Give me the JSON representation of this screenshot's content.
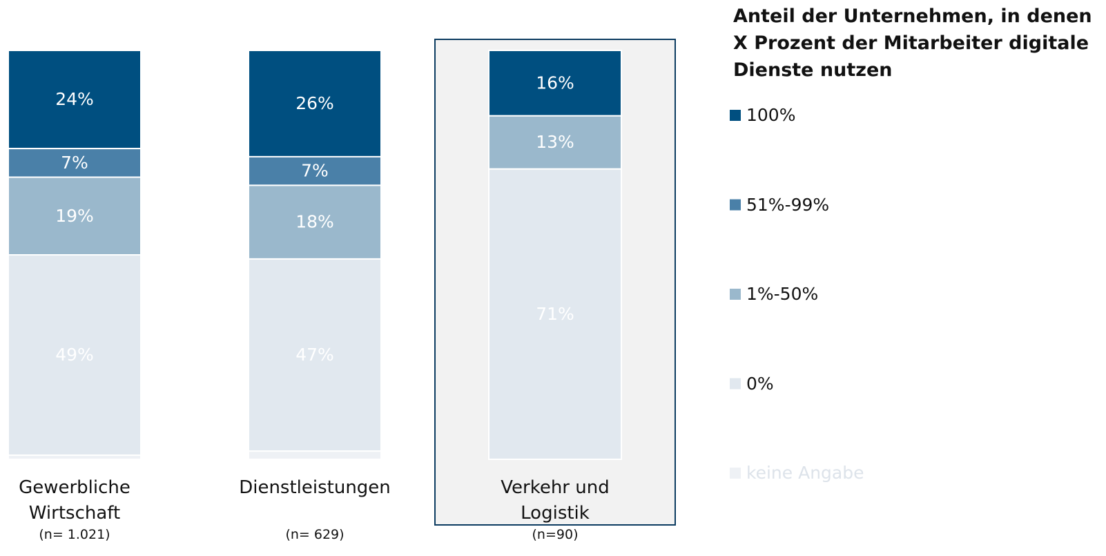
{
  "chart_data": {
    "type": "stacked_bar",
    "legend_title": "Anteil der Unternehmen, in denen X Prozent der Mitarbeiter digitale Dienste nutzen",
    "categories": [
      "Gewerbliche Wirtschaft",
      "Dienstleistungen",
      "Verkehr und Logistik"
    ],
    "sample_sizes": [
      "(n= 1.021)",
      "(n= 629)",
      "(n=90)"
    ],
    "highlight": 2,
    "ylim": [
      0,
      100
    ],
    "series": [
      {
        "name": "100%",
        "color": "#004f80",
        "label_color": "#ffffff",
        "values": [
          24,
          26,
          16
        ],
        "value_labels": [
          "24%",
          "26%",
          "16%"
        ]
      },
      {
        "name": "51%-99%",
        "color": "#4a80a8",
        "label_color": "#ffffff",
        "values": [
          7,
          7,
          0
        ],
        "value_labels": [
          "7%",
          "7%",
          null
        ]
      },
      {
        "name": "1%-50%",
        "color": "#9ab8cc",
        "label_color": "#ffffff",
        "values": [
          19,
          18,
          13
        ],
        "value_labels": [
          "19%",
          "18%",
          "13%"
        ]
      },
      {
        "name": "0%",
        "color": "#e1e8ef",
        "label_color": "#ffffff",
        "values": [
          49,
          47,
          71
        ],
        "value_labels": [
          "49%",
          "47%",
          "71%"
        ]
      },
      {
        "name": "keine Angabe",
        "color": "#eef1f5",
        "label_color": "#dde3ea",
        "values": [
          1,
          2,
          0
        ],
        "value_labels": [
          null,
          null,
          null
        ]
      }
    ]
  }
}
